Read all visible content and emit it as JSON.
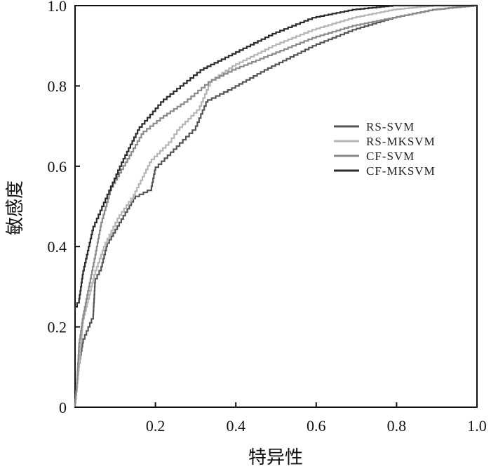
{
  "chart_data": {
    "type": "line",
    "title": "",
    "xlabel": "特异性",
    "ylabel": "敏感度",
    "xlim": [
      0,
      1.0
    ],
    "ylim": [
      0,
      1.0
    ],
    "xticks": [
      "0.2",
      "0.4",
      "0.6",
      "0.8",
      "1.0"
    ],
    "xtick_values": [
      0.2,
      0.4,
      0.6,
      0.8,
      1.0
    ],
    "yticks": [
      "0",
      "0.2",
      "0.4",
      "0.6",
      "0.8",
      "1.0"
    ],
    "ytick_values": [
      0,
      0.2,
      0.4,
      0.6,
      0.8,
      1.0
    ],
    "grid": false,
    "legend_position": "center-right",
    "series": [
      {
        "name": "RS-SVM",
        "color": "#555555",
        "x": [
          0,
          0.005,
          0.01,
          0.02,
          0.045,
          0.05,
          0.065,
          0.08,
          0.115,
          0.15,
          0.19,
          0.2,
          0.26,
          0.3,
          0.33,
          0.39,
          0.48,
          0.6,
          0.7,
          0.8,
          0.9,
          1.0
        ],
        "y": [
          0,
          0.05,
          0.1,
          0.16,
          0.22,
          0.31,
          0.34,
          0.4,
          0.46,
          0.52,
          0.54,
          0.59,
          0.65,
          0.69,
          0.76,
          0.79,
          0.84,
          0.9,
          0.94,
          0.97,
          0.99,
          1.0
        ]
      },
      {
        "name": "RS-MKSVM",
        "color": "#b5b5b5",
        "x": [
          0,
          0.005,
          0.01,
          0.02,
          0.05,
          0.075,
          0.11,
          0.145,
          0.19,
          0.24,
          0.26,
          0.31,
          0.34,
          0.4,
          0.5,
          0.6,
          0.7,
          0.8,
          0.9,
          1.0
        ],
        "y": [
          0,
          0.04,
          0.1,
          0.21,
          0.33,
          0.4,
          0.47,
          0.52,
          0.61,
          0.66,
          0.69,
          0.74,
          0.81,
          0.85,
          0.9,
          0.94,
          0.97,
          0.99,
          1.0,
          1.0
        ]
      },
      {
        "name": "CF-SVM",
        "color": "#8a8a8a",
        "x": [
          0,
          0.005,
          0.01,
          0.02,
          0.05,
          0.065,
          0.09,
          0.13,
          0.17,
          0.22,
          0.28,
          0.34,
          0.4,
          0.5,
          0.6,
          0.7,
          0.8,
          0.9,
          1.0
        ],
        "y": [
          0,
          0.06,
          0.15,
          0.22,
          0.37,
          0.45,
          0.54,
          0.61,
          0.68,
          0.72,
          0.76,
          0.81,
          0.84,
          0.88,
          0.92,
          0.95,
          0.97,
          0.99,
          1.0
        ]
      },
      {
        "name": "CF-MKSVM",
        "color": "#2a2a2a",
        "x": [
          0,
          0.01,
          0.02,
          0.045,
          0.08,
          0.12,
          0.16,
          0.22,
          0.32,
          0.4,
          0.5,
          0.6,
          0.7,
          0.8,
          0.9,
          1.0
        ],
        "y": [
          0.24,
          0.26,
          0.33,
          0.44,
          0.52,
          0.61,
          0.69,
          0.76,
          0.84,
          0.88,
          0.93,
          0.97,
          0.99,
          1.0,
          1.0,
          1.0
        ]
      }
    ]
  }
}
